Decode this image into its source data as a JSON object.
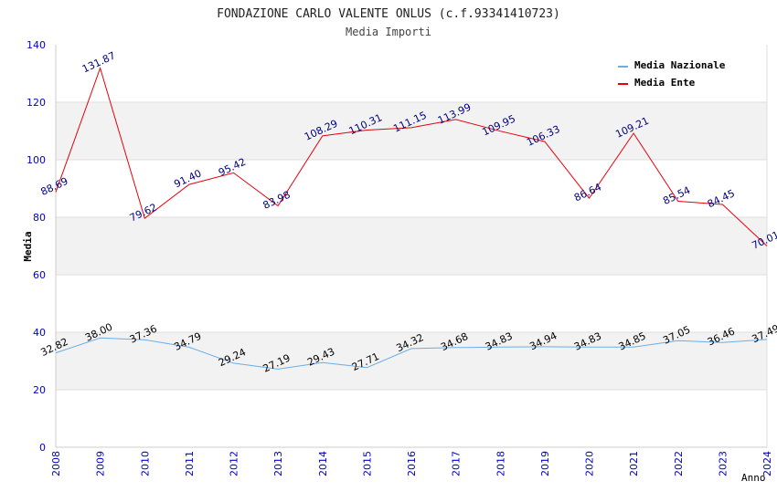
{
  "chart_data": {
    "type": "line",
    "title": "FONDAZIONE CARLO VALENTE ONLUS (c.f.93341410723)",
    "subtitle": "Media Importi",
    "xlabel": "Anno",
    "ylabel": "Media",
    "ylim": [
      0,
      140
    ],
    "yticks": [
      "0",
      "20",
      "40",
      "60",
      "80",
      "100",
      "120",
      "140"
    ],
    "categories": [
      "2008",
      "2009",
      "2010",
      "2011",
      "2012",
      "2013",
      "2014",
      "2015",
      "2016",
      "2017",
      "2018",
      "2019",
      "2020",
      "2021",
      "2022",
      "2023",
      "2024"
    ],
    "grid": "horizontal bands",
    "legend_position": "top-right",
    "series": [
      {
        "name": "Media Nazionale",
        "color": "#6aaee8",
        "values": [
          32.82,
          38.0,
          37.36,
          34.79,
          29.24,
          27.19,
          29.43,
          27.71,
          34.32,
          34.68,
          34.83,
          34.94,
          34.83,
          34.85,
          37.05,
          36.46,
          37.49
        ],
        "labels": [
          "32.82",
          "38.00",
          "37.36",
          "34.79",
          "29.24",
          "27.19",
          "29.43",
          "27.71",
          "34.32",
          "34.68",
          "34.83",
          "34.94",
          "34.83",
          "34.85",
          "37.05",
          "36.46",
          "37.49"
        ]
      },
      {
        "name": "Media Ente",
        "color": "#e8000b",
        "values": [
          88.69,
          131.87,
          79.62,
          91.4,
          95.42,
          83.98,
          108.29,
          110.31,
          111.15,
          113.99,
          109.95,
          106.33,
          86.64,
          109.21,
          85.54,
          84.45,
          70.01
        ],
        "labels": [
          "88.69",
          "131.87",
          "79.62",
          "91.40",
          "95.42",
          "83.98",
          "108.29",
          "110.31",
          "111.15",
          "113.99",
          "109.95",
          "106.33",
          "86.64",
          "109.21",
          "85.54",
          "84.45",
          "70.01"
        ]
      }
    ],
    "colors": {
      "axis_text": "#0000cc",
      "band": "#f2f2f2",
      "gridline": "#dddddd",
      "nazionale_label": "#000000",
      "ente_label": "#000080"
    }
  }
}
